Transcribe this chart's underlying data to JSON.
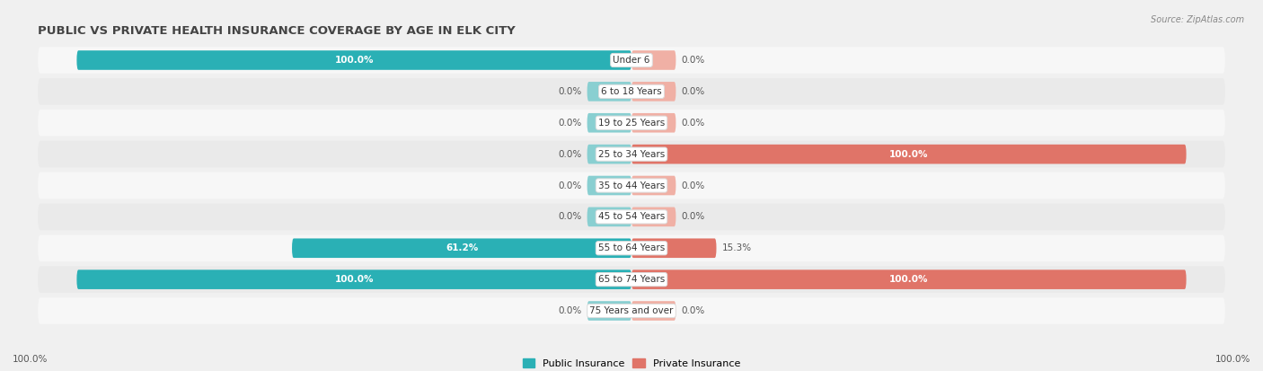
{
  "title": "PUBLIC VS PRIVATE HEALTH INSURANCE COVERAGE BY AGE IN ELK CITY",
  "source": "Source: ZipAtlas.com",
  "categories": [
    "Under 6",
    "6 to 18 Years",
    "19 to 25 Years",
    "25 to 34 Years",
    "35 to 44 Years",
    "45 to 54 Years",
    "55 to 64 Years",
    "65 to 74 Years",
    "75 Years and over"
  ],
  "public_values": [
    100.0,
    0.0,
    0.0,
    0.0,
    0.0,
    0.0,
    61.2,
    100.0,
    0.0
  ],
  "private_values": [
    0.0,
    0.0,
    0.0,
    100.0,
    0.0,
    0.0,
    15.3,
    100.0,
    0.0
  ],
  "public_color": "#2ab0b5",
  "private_color": "#e07468",
  "public_color_light": "#89cfd1",
  "private_color_light": "#f0b0a5",
  "bg_color": "#f0f0f0",
  "row_bg_light": "#f7f7f7",
  "row_bg_dark": "#eaeaea",
  "bar_height": 0.62,
  "stub_size": 8.0,
  "figsize": [
    14.06,
    4.13
  ],
  "dpi": 100
}
